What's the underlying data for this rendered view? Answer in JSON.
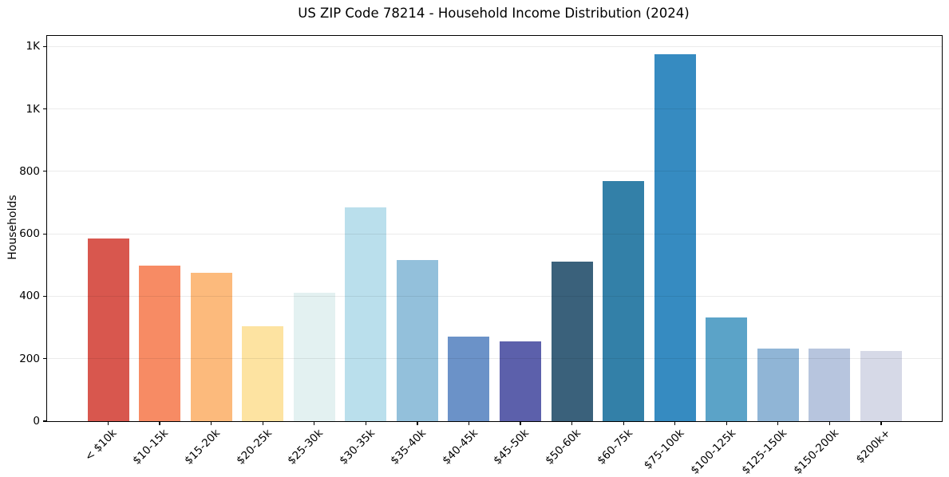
{
  "chart_data": {
    "type": "bar",
    "title": "US ZIP Code 78214 - Household Income Distribution (2024)",
    "xlabel": "",
    "ylabel": "Households",
    "categories": [
      "< $10k",
      "$10-15k",
      "$15-20k",
      "$20-25k",
      "$25-30k",
      "$30-35k",
      "$35-40k",
      "$40-45k",
      "$45-50k",
      "$50-60k",
      "$60-75k",
      "$75-100k",
      "$100-125k",
      "$125-150k",
      "$150-200k",
      "$200k+"
    ],
    "values": [
      585,
      497,
      474,
      303,
      412,
      686,
      517,
      271,
      255,
      512,
      768,
      1175,
      333,
      233,
      233,
      225
    ],
    "bar_colors": [
      "#d8574e",
      "#f78b64",
      "#fcba7c",
      "#fde3a1",
      "#e3f1f1",
      "#badfec",
      "#93c0db",
      "#6b92c8",
      "#5c60ab",
      "#3a617b",
      "#3380a8",
      "#368bc1",
      "#5ba3c8",
      "#90b5d6",
      "#b7c5de",
      "#d6d9e7"
    ],
    "ylim": [
      0,
      1234
    ],
    "yticks": [
      {
        "value": 0,
        "label": "0"
      },
      {
        "value": 200,
        "label": "200"
      },
      {
        "value": 400,
        "label": "400"
      },
      {
        "value": 600,
        "label": "600"
      },
      {
        "value": 800,
        "label": "800"
      },
      {
        "value": 1000,
        "label": "1K"
      },
      {
        "value": 1200,
        "label": "1K"
      }
    ],
    "grid": "horizontal, light gray, drawn over bars",
    "legend": "none"
  }
}
